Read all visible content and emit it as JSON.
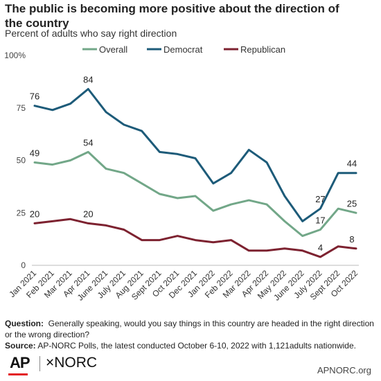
{
  "title": "The public is becoming more positive about the direction of the country",
  "subtitle": "Percent of adults who say right direction",
  "chart_data": {
    "type": "line",
    "categories": [
      "Jan 2021",
      "Feb 2021",
      "Mar 2021",
      "Apr 2021",
      "June 2021",
      "July 2021",
      "Aug 2021",
      "Sept 2021",
      "Oct 2021",
      "Dec 2021",
      "Jan 2022",
      "Feb 2022",
      "Mar 2022",
      "Apr 2022",
      "May 2022",
      "June 2022",
      "July 2022",
      "Sept 2022",
      "Oct 2022"
    ],
    "ylim": [
      0,
      100
    ],
    "yticks": [
      0,
      25,
      50,
      75,
      100
    ],
    "ytick_labels": [
      "0",
      "25",
      "50",
      "75",
      "100%"
    ],
    "legend_position": "top",
    "grid": false,
    "series": [
      {
        "name": "Overall",
        "color": "#72a788",
        "values": [
          49,
          48,
          50,
          54,
          46,
          44,
          39,
          34,
          32,
          33,
          26,
          29,
          31,
          29,
          21,
          14,
          17,
          27,
          25
        ],
        "labels": {
          "0": "49",
          "3": "54",
          "16": "17",
          "18": "25"
        }
      },
      {
        "name": "Democrat",
        "color": "#1d5b79",
        "values": [
          76,
          74,
          77,
          84,
          73,
          67,
          64,
          54,
          53,
          51,
          39,
          44,
          55,
          49,
          33,
          21,
          27,
          44,
          44
        ],
        "labels": {
          "0": "76",
          "3": "84",
          "16": "27",
          "18": "44"
        }
      },
      {
        "name": "Republican",
        "color": "#7d2230",
        "values": [
          20,
          21,
          22,
          20,
          19,
          17,
          12,
          12,
          14,
          12,
          11,
          12,
          7,
          7,
          8,
          7,
          4,
          9,
          8
        ],
        "labels": {
          "0": "20",
          "3": "20",
          "16": "4",
          "18": "8"
        }
      }
    ]
  },
  "footnote": {
    "question_label": "Question:",
    "question_text": "Generally speaking, would you say things in this country are headed in the right direction or the wrong direction?",
    "source_label": "Source:",
    "source_text": "AP-NORC Polls, the latest conducted October 6-10, 2022 with 1,121adults nationwide."
  },
  "branding": {
    "ap_logo": "AP",
    "norc_logo": "NORC",
    "norc_mark": "×",
    "website": "APNORC.org"
  }
}
